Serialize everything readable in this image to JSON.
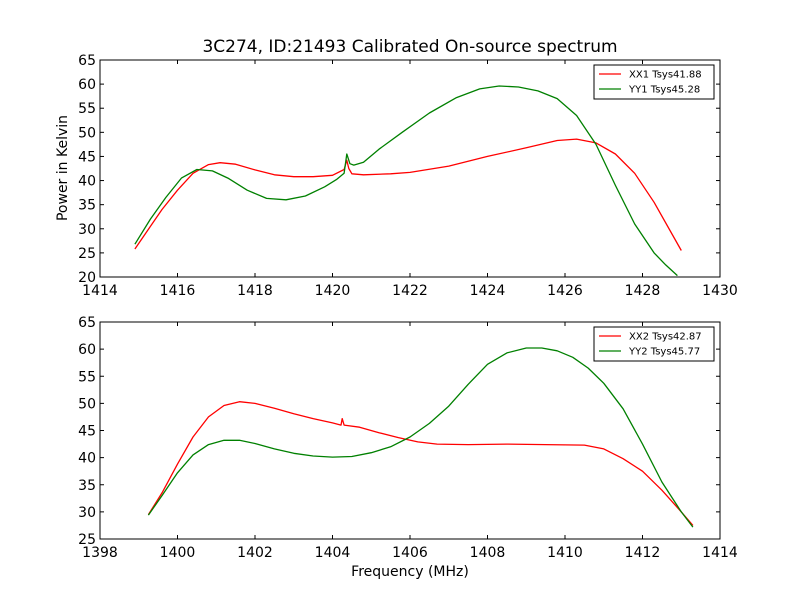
{
  "chart_data": [
    {
      "type": "line",
      "title": "3C274, ID:21493 Calibrated On-source spectrum",
      "xlabel": "",
      "ylabel": "Power in Kelvin",
      "xlim": [
        1414,
        1430
      ],
      "ylim": [
        20,
        65
      ],
      "xticks": [
        "1414",
        "1416",
        "1418",
        "1420",
        "1422",
        "1424",
        "1426",
        "1428",
        "1430"
      ],
      "yticks": [
        "20",
        "25",
        "30",
        "35",
        "40",
        "45",
        "50",
        "55",
        "60",
        "65"
      ],
      "legend_position": "top-right",
      "grid": false,
      "series": [
        {
          "name": "XX1 Tsys41.88",
          "color": "#ff0000",
          "x": [
            1414.9,
            1415.3,
            1415.6,
            1416.0,
            1416.4,
            1416.8,
            1417.1,
            1417.5,
            1418.0,
            1418.5,
            1419.0,
            1419.5,
            1420.0,
            1420.3,
            1420.37,
            1420.42,
            1420.5,
            1420.8,
            1421.5,
            1422.0,
            1423.0,
            1424.0,
            1425.0,
            1425.8,
            1426.3,
            1426.8,
            1427.3,
            1427.8,
            1428.3,
            1429.0
          ],
          "y": [
            25.8,
            30.5,
            34.0,
            38.0,
            41.5,
            43.3,
            43.7,
            43.4,
            42.2,
            41.2,
            40.8,
            40.8,
            41.1,
            42.3,
            44.2,
            42.5,
            41.4,
            41.2,
            41.4,
            41.7,
            43.0,
            45.0,
            46.8,
            48.3,
            48.6,
            47.8,
            45.5,
            41.5,
            35.5,
            25.5
          ]
        },
        {
          "name": "YY1 Tsys45.28",
          "color": "#008000",
          "x": [
            1414.9,
            1415.3,
            1415.7,
            1416.1,
            1416.5,
            1416.9,
            1417.3,
            1417.8,
            1418.3,
            1418.8,
            1419.3,
            1419.8,
            1420.1,
            1420.3,
            1420.37,
            1420.45,
            1420.55,
            1420.8,
            1421.2,
            1421.8,
            1422.5,
            1423.2,
            1423.8,
            1424.3,
            1424.8,
            1425.3,
            1425.8,
            1426.3,
            1426.8,
            1427.3,
            1427.8,
            1428.3,
            1428.6,
            1428.9
          ],
          "y": [
            26.8,
            32.0,
            36.5,
            40.5,
            42.3,
            42.0,
            40.5,
            38.0,
            36.3,
            36.0,
            36.8,
            38.7,
            40.2,
            41.5,
            45.5,
            43.5,
            43.2,
            43.8,
            46.5,
            50.0,
            54.0,
            57.2,
            59.0,
            59.6,
            59.4,
            58.6,
            57.0,
            53.5,
            47.5,
            39.0,
            31.0,
            25.0,
            22.5,
            20.3
          ]
        }
      ]
    },
    {
      "type": "line",
      "title": "",
      "xlabel": "Frequency (MHz)",
      "ylabel": "",
      "xlim": [
        1398,
        1414
      ],
      "ylim": [
        25,
        65
      ],
      "xticks": [
        "1398",
        "1400",
        "1402",
        "1404",
        "1406",
        "1408",
        "1410",
        "1412",
        "1414"
      ],
      "yticks": [
        "25",
        "30",
        "35",
        "40",
        "45",
        "50",
        "55",
        "60",
        "65"
      ],
      "legend_position": "top-right",
      "grid": false,
      "series": [
        {
          "name": "XX2 Tsys42.87",
          "color": "#ff0000",
          "x": [
            1399.25,
            1399.6,
            1400.0,
            1400.4,
            1400.8,
            1401.2,
            1401.6,
            1402.0,
            1402.5,
            1403.0,
            1403.5,
            1404.0,
            1404.22,
            1404.25,
            1404.3,
            1404.7,
            1405.2,
            1405.7,
            1406.2,
            1406.7,
            1407.5,
            1408.5,
            1409.5,
            1410.5,
            1411.0,
            1411.5,
            1412.0,
            1412.5,
            1413.0,
            1413.3
          ],
          "y": [
            29.5,
            33.5,
            38.8,
            43.8,
            47.5,
            49.6,
            50.3,
            50.0,
            49.1,
            48.1,
            47.2,
            46.4,
            46.0,
            47.2,
            46.0,
            45.6,
            44.6,
            43.7,
            42.9,
            42.5,
            42.4,
            42.5,
            42.4,
            42.3,
            41.6,
            39.8,
            37.5,
            34.0,
            30.0,
            27.5
          ]
        },
        {
          "name": "YY2 Tsys45.77",
          "color": "#008000",
          "x": [
            1399.25,
            1399.6,
            1400.0,
            1400.4,
            1400.8,
            1401.2,
            1401.6,
            1402.0,
            1402.5,
            1403.0,
            1403.5,
            1404.0,
            1404.5,
            1405.0,
            1405.5,
            1406.0,
            1406.5,
            1407.0,
            1407.5,
            1408.0,
            1408.5,
            1409.0,
            1409.4,
            1409.8,
            1410.2,
            1410.6,
            1411.0,
            1411.5,
            1412.0,
            1412.5,
            1413.0,
            1413.3
          ],
          "y": [
            29.4,
            33.0,
            37.2,
            40.5,
            42.4,
            43.2,
            43.2,
            42.6,
            41.6,
            40.8,
            40.3,
            40.1,
            40.2,
            40.9,
            42.0,
            43.8,
            46.3,
            49.5,
            53.5,
            57.2,
            59.3,
            60.2,
            60.2,
            59.7,
            58.5,
            56.5,
            53.7,
            49.0,
            42.5,
            35.5,
            30.0,
            27.2
          ]
        }
      ]
    }
  ]
}
